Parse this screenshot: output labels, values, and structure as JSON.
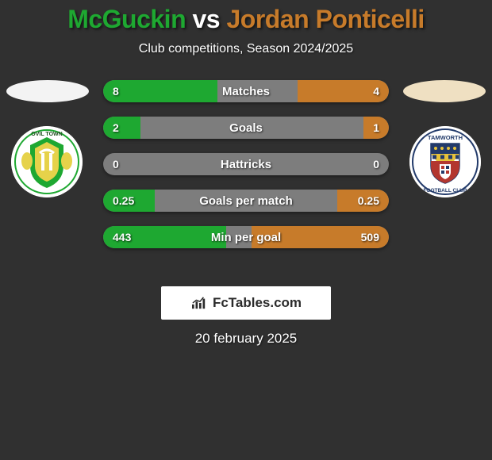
{
  "title": {
    "player1": "McGuckin",
    "vs": " vs ",
    "player2": "Jordan Ponticelli",
    "color1": "#1ea831",
    "color_vs": "#ffffff",
    "color2": "#c77b2a",
    "fontsize": 32
  },
  "subtitle": "Club competitions, Season 2024/2025",
  "ellipse_color_left": "#f3f3f3",
  "ellipse_color_right": "#efe0c2",
  "crest_left": {
    "bg": "#ffffff",
    "inner": "#1ea831",
    "accent": "#e6d24a",
    "text": "OVIL TOWN"
  },
  "crest_right": {
    "bg": "#ffffff",
    "top": "#223a6a",
    "mid": "#e6c23a",
    "shield": "#b3362f",
    "text": "TAMWORTH"
  },
  "bar_style": {
    "track_color": "#7d7d7d",
    "left_color": "#1ea831",
    "right_color": "#c77b2a",
    "height": 28,
    "radius": 14,
    "gap": 18,
    "label_fontsize": 15,
    "value_fontsize": 14
  },
  "bars": [
    {
      "label": "Matches",
      "left_val": "8",
      "right_val": "4",
      "left_pct": 40,
      "right_pct": 32
    },
    {
      "label": "Goals",
      "left_val": "2",
      "right_val": "1",
      "left_pct": 13,
      "right_pct": 9
    },
    {
      "label": "Hattricks",
      "left_val": "0",
      "right_val": "0",
      "left_pct": 0,
      "right_pct": 0
    },
    {
      "label": "Goals per match",
      "left_val": "0.25",
      "right_val": "0.25",
      "left_pct": 18,
      "right_pct": 18
    },
    {
      "label": "Min per goal",
      "left_val": "443",
      "right_val": "509",
      "left_pct": 43,
      "right_pct": 48
    }
  ],
  "watermark": "FcTables.com",
  "date": "20 february 2025",
  "background_color": "#303030"
}
